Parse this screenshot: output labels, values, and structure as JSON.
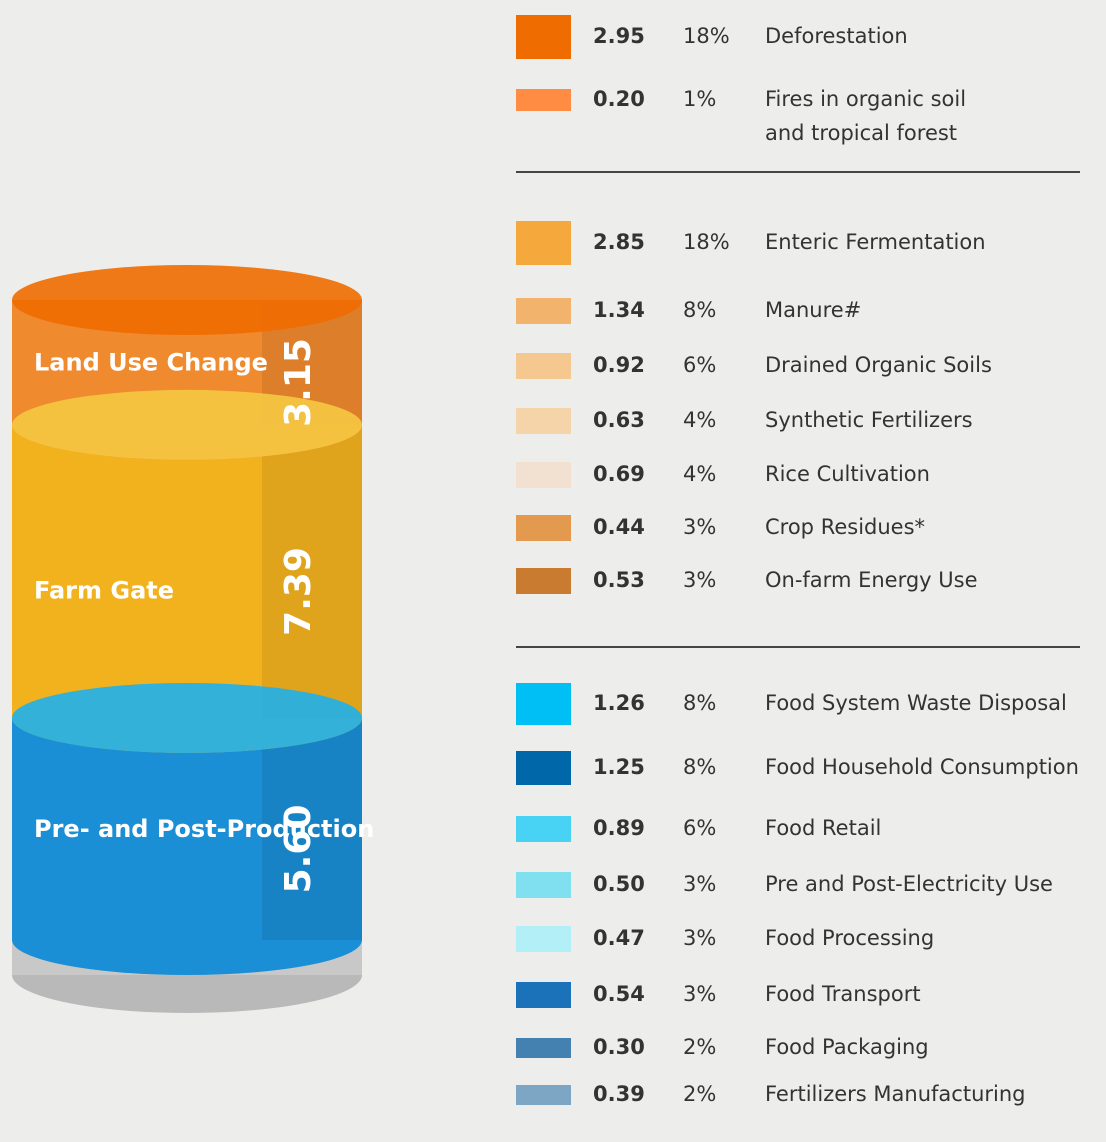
{
  "groups": [
    {
      "label": "Land Use Change",
      "total": {
        "value": 3.15,
        "label": "3.15"
      },
      "color": "#f08a2e",
      "top_color": "#ef6c00",
      "items": [
        {
          "value": "2.95",
          "percent": "18%",
          "label": "Deforestation",
          "color": "#ef6c00"
        },
        {
          "value": "0.20",
          "percent": "1%",
          "label": "Fires in organic soil and tropical forest",
          "color": "#ff8c42"
        }
      ]
    },
    {
      "label": "Farm Gate",
      "total": {
        "value": 7.39,
        "label": "7.39"
      },
      "color": "#f2b21e",
      "top_color": "#f5c842",
      "items": [
        {
          "value": "2.85",
          "percent": "18%",
          "label": "Enteric Fermentation",
          "color": "#f5a83c"
        },
        {
          "value": "1.34",
          "percent": "8%",
          "label": "Manure#",
          "color": "#f2b36c"
        },
        {
          "value": "0.92",
          "percent": "6%",
          "label": "Drained Organic Soils",
          "color": "#f5c88f"
        },
        {
          "value": "0.63",
          "percent": "4%",
          "label": "Synthetic Fertilizers",
          "color": "#f5d4aa"
        },
        {
          "value": "0.69",
          "percent": "4%",
          "label": "Rice Cultivation",
          "color": "#f2e1d1"
        },
        {
          "value": "0.44",
          "percent": "3%",
          "label": "Crop Residues*",
          "color": "#e39a4f"
        },
        {
          "value": "0.53",
          "percent": "3%",
          "label": "On-farm Energy Use",
          "color": "#c97b30"
        }
      ]
    },
    {
      "label": "Pre- and Post-Production",
      "total": {
        "value": 5.6,
        "label": "5.60"
      },
      "color": "#1a8fd6",
      "top_color": "#1fb0ec",
      "items": [
        {
          "value": "1.26",
          "percent": "8%",
          "label": "Food System Waste Disposal",
          "color": "#00bff5"
        },
        {
          "value": "1.25",
          "percent": "8%",
          "label": "Food Household Consumption",
          "color": "#0067a8"
        },
        {
          "value": "0.89",
          "percent": "6%",
          "label": "Food Retail",
          "color": "#48d3f5"
        },
        {
          "value": "0.50",
          "percent": "3%",
          "label": "Pre and Post-Electricity Use",
          "color": "#80e0ef"
        },
        {
          "value": "0.47",
          "percent": "3%",
          "label": "Food Processing",
          "color": "#b3eff6"
        },
        {
          "value": "0.54",
          "percent": "3%",
          "label": "Food Transport",
          "color": "#1c72b8"
        },
        {
          "value": "0.30",
          "percent": "2%",
          "label": "Food Packaging",
          "color": "#4480b0"
        },
        {
          "value": "0.39",
          "percent": "2%",
          "label": "Fertilizers Manufacturing",
          "color": "#7da6c4"
        }
      ]
    }
  ]
}
